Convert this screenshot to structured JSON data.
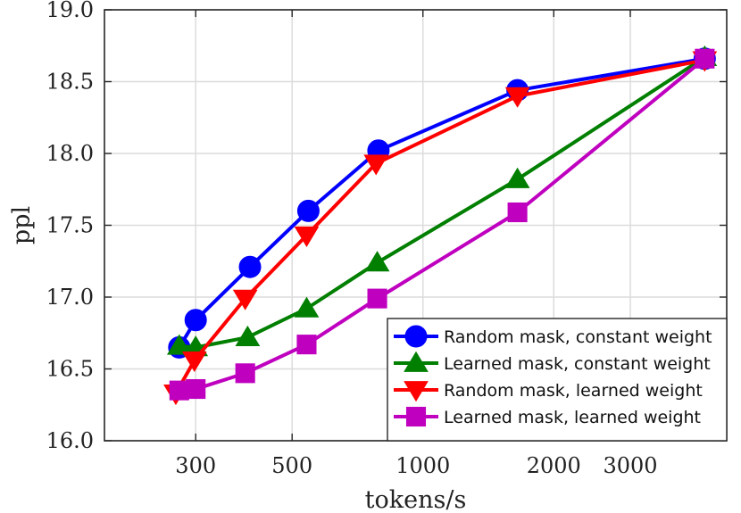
{
  "chart_data": {
    "type": "line",
    "title": "",
    "xlabel": "tokens/s",
    "ylabel": "ppl",
    "xscale": "log",
    "xlim": [
      185,
      5000
    ],
    "ylim": [
      16.0,
      19.0
    ],
    "xticks": [
      300,
      500,
      1000,
      2000,
      3000
    ],
    "xtick_labels": [
      "300",
      "500",
      "1000",
      "2000",
      "3000"
    ],
    "yticks": [
      16.0,
      16.5,
      17.0,
      17.5,
      18.0,
      18.5,
      19.0
    ],
    "ytick_labels": [
      "16.0",
      "16.5",
      "17.0",
      "17.5",
      "18.0",
      "18.5",
      "19.0"
    ],
    "grid": true,
    "legend_position": "bottom-right",
    "series": [
      {
        "name": "Random mask, constant weight",
        "color": "#0000ff",
        "marker": "circle",
        "x": [
          275,
          300,
          400,
          545,
          790,
          1650,
          4450
        ],
        "y": [
          16.65,
          16.84,
          17.21,
          17.6,
          18.02,
          18.44,
          18.66
        ]
      },
      {
        "name": "Learned mask, constant weight",
        "color": "#007f00",
        "marker": "triangle-up",
        "x": [
          275,
          300,
          395,
          540,
          785,
          1650,
          4450
        ],
        "y": [
          16.66,
          16.65,
          16.72,
          16.92,
          17.24,
          17.82,
          18.67
        ]
      },
      {
        "name": "Random mask, learned weight",
        "color": "#ff0000",
        "marker": "triangle-down",
        "x": [
          270,
          298,
          390,
          540,
          780,
          1650,
          4450
        ],
        "y": [
          16.33,
          16.56,
          16.99,
          17.43,
          17.93,
          18.4,
          18.65
        ]
      },
      {
        "name": "Learned mask, learned weight",
        "color": "#bf00bf",
        "marker": "square",
        "x": [
          275,
          300,
          390,
          540,
          785,
          1650,
          4450
        ],
        "y": [
          16.35,
          16.36,
          16.47,
          16.67,
          16.99,
          17.59,
          18.66
        ]
      }
    ]
  }
}
